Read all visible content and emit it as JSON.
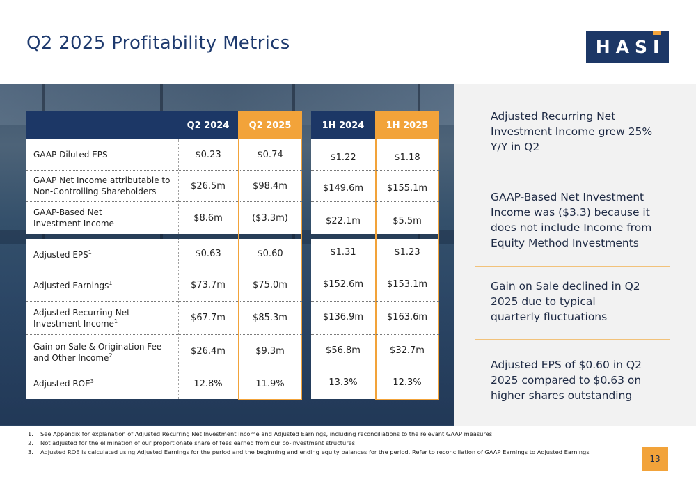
{
  "title": "Q2 2025 Profitability Metrics",
  "logo": {
    "text": "HASI"
  },
  "colors": {
    "navy": "#1c3766",
    "accent": "#f2a33a",
    "side_bg": "#f2f2f2"
  },
  "table": {
    "headers": {
      "q2_2024": "Q2 2024",
      "q2_2025": "Q2 2025",
      "h1_2024": "1H 2024",
      "h1_2025": "1H 2025"
    },
    "rows": [
      {
        "label": "GAAP Diluted EPS",
        "sup": "",
        "q2_2024": "$0.23",
        "q2_2025": "$0.74",
        "h1_2024": "$1.22",
        "h1_2025": "$1.18"
      },
      {
        "label": "GAAP Net Income attributable to Non-Controlling Shareholders",
        "sup": "",
        "q2_2024": "$26.5m",
        "q2_2025": "$98.4m",
        "h1_2024": "$149.6m",
        "h1_2025": "$155.1m"
      },
      {
        "label": "GAAP-Based Net Investment Income",
        "sup": "",
        "q2_2024": "$8.6m",
        "q2_2025": "($3.3m)",
        "h1_2024": "$22.1m",
        "h1_2025": "$5.5m"
      },
      {
        "label": "Adjusted EPS",
        "sup": "1",
        "q2_2024": "$0.63",
        "q2_2025": "$0.60",
        "h1_2024": "$1.31",
        "h1_2025": "$1.23"
      },
      {
        "label": "Adjusted Earnings",
        "sup": "1",
        "q2_2024": "$73.7m",
        "q2_2025": "$75.0m",
        "h1_2024": "$152.6m",
        "h1_2025": "$153.1m"
      },
      {
        "label": "Adjusted Recurring Net Investment Income",
        "sup": "1",
        "q2_2024": "$67.7m",
        "q2_2025": "$85.3m",
        "h1_2024": "$136.9m",
        "h1_2025": "$163.6m"
      },
      {
        "label": "Gain on Sale & Origination Fee and Other Income",
        "sup": "2",
        "q2_2024": "$26.4m",
        "q2_2025": "$9.3m",
        "h1_2024": "$56.8m",
        "h1_2025": "$32.7m"
      },
      {
        "label": "Adjusted ROE",
        "sup": "3",
        "q2_2024": "12.8%",
        "q2_2025": "11.9%",
        "h1_2024": "13.3%",
        "h1_2025": "12.3%"
      }
    ]
  },
  "sidebar": [
    "Adjusted Recurring Net Investment Income grew 25% Y/Y in Q2",
    "GAAP-Based Net Investment Income was ($3.3) because it does not include Income from Equity Method Investments",
    "Gain on Sale declined in Q2 2025 due to typical quarterly fluctuations",
    "Adjusted EPS of $0.60 in Q2 2025 compared to $0.63 on higher shares outstanding"
  ],
  "footnotes": [
    {
      "num": "1.",
      "text": "See Appendix for explanation of Adjusted Recurring Net Investment Income and Adjusted Earnings, including reconciliations to the relevant GAAP measures"
    },
    {
      "num": "2.",
      "text": "Not adjusted for the elimination of our proportionate share of fees earned from our co-investment structures"
    },
    {
      "num": "3.",
      "text": "Adjusted ROE is calculated using Adjusted Earnings for the period and the beginning and ending equity balances for the period. Refer to reconciliation of GAAP Earnings to Adjusted Earnings"
    }
  ],
  "page_number": "13"
}
